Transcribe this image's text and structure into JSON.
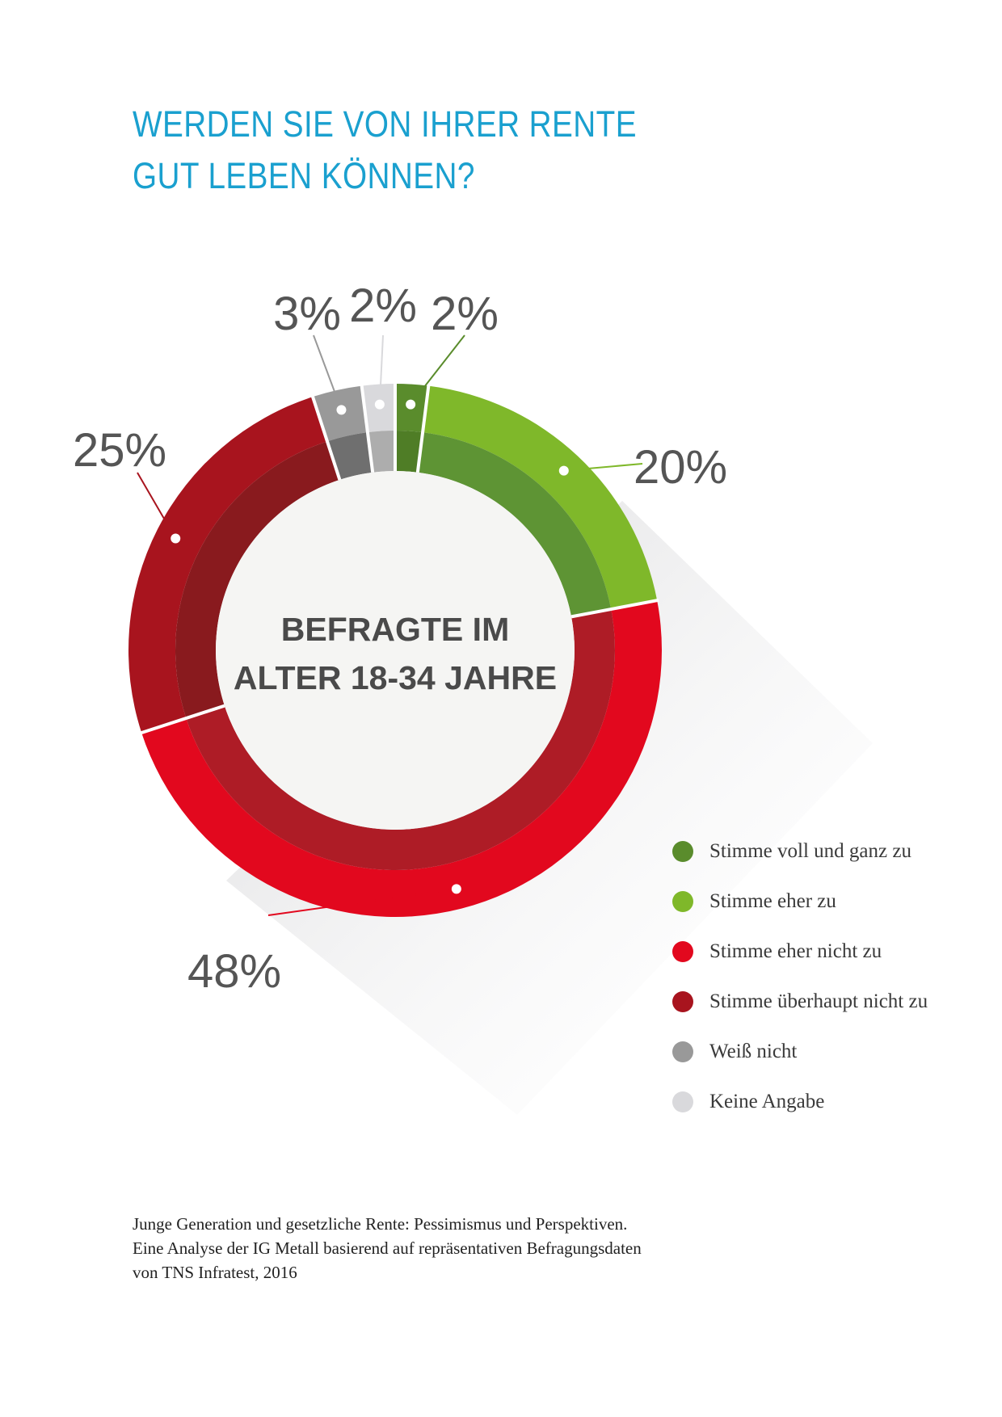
{
  "title": {
    "line1": "WERDEN SIE VON IHRER RENTE",
    "line2": "GUT LEBEN KÖNNEN?"
  },
  "center_label": {
    "line1": "BEFRAGTE IM",
    "line2": "ALTER 18-34 JAHRE"
  },
  "chart_data": {
    "type": "pie",
    "donut": true,
    "title": "WERDEN SIE VON IHRER RENTE GUT LEBEN KÖNNEN?",
    "center_text": "BEFRAGTE IM ALTER 18-34 JAHRE",
    "legend_position": "bottom-right",
    "unit": "%",
    "slices": [
      {
        "label": "Stimme voll und ganz zu",
        "value": 2,
        "display": "2%",
        "color": "#5a8c2c",
        "inner_color": "#4f7d26"
      },
      {
        "label": "Stimme eher zu",
        "value": 20,
        "display": "20%",
        "color": "#7fb82a",
        "inner_color": "#5e9434"
      },
      {
        "label": "Stimme eher nicht zu",
        "value": 48,
        "display": "48%",
        "color": "#e2081e",
        "inner_color": "#ae1c26"
      },
      {
        "label": "Stimme überhaupt nicht zu",
        "value": 25,
        "display": "25%",
        "color": "#a8141e",
        "inner_color": "#891a1e"
      },
      {
        "label": "Weiß nicht",
        "value": 3,
        "display": "3%",
        "color": "#999999",
        "inner_color": "#6f6f6f"
      },
      {
        "label": "Keine Angabe",
        "value": 2,
        "display": "2%",
        "color": "#d9d9dc",
        "inner_color": "#adadad"
      }
    ]
  },
  "source": {
    "line1": "Junge Generation und gesetzliche Rente: Pessimismus und Perspektiven.",
    "line2": "Eine Analyse der IG Metall basierend auf repräsentativen Befragungsdaten",
    "line3": "von TNS Infratest, 2016"
  }
}
